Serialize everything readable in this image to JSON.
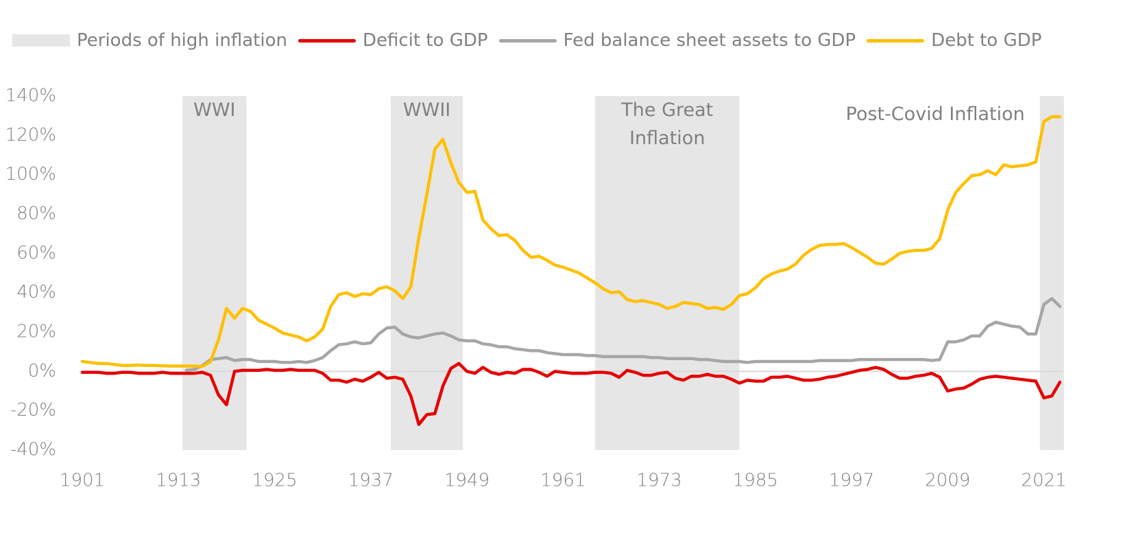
{
  "chart_data": {
    "type": "line",
    "x": [
      1901,
      1902,
      1903,
      1904,
      1905,
      1906,
      1907,
      1908,
      1909,
      1910,
      1911,
      1912,
      1913,
      1914,
      1915,
      1916,
      1917,
      1918,
      1919,
      1920,
      1921,
      1922,
      1923,
      1924,
      1925,
      1926,
      1927,
      1928,
      1929,
      1930,
      1931,
      1932,
      1933,
      1934,
      1935,
      1936,
      1937,
      1938,
      1939,
      1940,
      1941,
      1942,
      1943,
      1944,
      1945,
      1946,
      1947,
      1948,
      1949,
      1950,
      1951,
      1952,
      1953,
      1954,
      1955,
      1956,
      1957,
      1958,
      1959,
      1960,
      1961,
      1962,
      1963,
      1964,
      1965,
      1966,
      1967,
      1968,
      1969,
      1970,
      1971,
      1972,
      1973,
      1974,
      1975,
      1976,
      1977,
      1978,
      1979,
      1980,
      1981,
      1982,
      1983,
      1984,
      1985,
      1986,
      1987,
      1988,
      1989,
      1990,
      1991,
      1992,
      1993,
      1994,
      1995,
      1996,
      1997,
      1998,
      1999,
      2000,
      2001,
      2002,
      2003,
      2004,
      2005,
      2006,
      2007,
      2008,
      2009,
      2010,
      2011,
      2012,
      2013,
      2014,
      2015,
      2016,
      2017,
      2018,
      2019,
      2020,
      2021,
      2022,
      2023
    ],
    "series": [
      {
        "name": "Deficit to GDP",
        "color": "#e60000",
        "values": [
          -0.5,
          -0.5,
          -0.5,
          -1,
          -1,
          -0.5,
          -0.5,
          -1,
          -1,
          -1,
          -0.5,
          -1,
          -1,
          -1,
          -1,
          -0.5,
          -2,
          -12,
          -17,
          0,
          0.5,
          0.5,
          0.5,
          1,
          0.5,
          0.5,
          1,
          0.5,
          0.5,
          0.5,
          -1,
          -4.5,
          -4.5,
          -5.5,
          -4,
          -5,
          -3,
          -0.5,
          -3.5,
          -3,
          -4,
          -12.5,
          -27,
          -22,
          -21.5,
          -7.5,
          1.5,
          4,
          0,
          -1,
          2,
          -0.5,
          -1.5,
          -0.5,
          -1,
          1,
          1,
          -0.5,
          -2.5,
          0,
          -0.5,
          -1,
          -1,
          -1,
          -0.5,
          -0.5,
          -1,
          -3,
          0.5,
          -0.5,
          -2,
          -2,
          -1,
          -0.5,
          -3.5,
          -4.5,
          -2.5,
          -2.5,
          -1.5,
          -2.5,
          -2.5,
          -4,
          -6,
          -4.5,
          -5,
          -5,
          -3,
          -3,
          -2.5,
          -3.5,
          -4.5,
          -4.5,
          -4,
          -3,
          -2.5,
          -1.5,
          -0.5,
          0.5,
          1,
          2,
          1,
          -1.5,
          -3.5,
          -3.5,
          -2.5,
          -2,
          -1,
          -3,
          -10,
          -9,
          -8.5,
          -6.5,
          -4,
          -3,
          -2.5,
          -3,
          -3.5,
          -4,
          -4.5,
          -5,
          -13.5,
          -12.5,
          -5.5
        ]
      },
      {
        "name": "Fed balance sheet assets to GDP",
        "color": "#a6a6a6",
        "values": [
          null,
          null,
          null,
          null,
          null,
          null,
          null,
          null,
          null,
          null,
          null,
          null,
          null,
          0.5,
          1,
          3,
          6,
          6.5,
          7,
          5.5,
          6,
          6,
          5,
          5,
          5,
          4.5,
          4.5,
          5,
          4.5,
          5.5,
          7,
          10.5,
          13.5,
          14,
          15,
          14,
          14.5,
          19,
          22,
          22.5,
          19,
          17.5,
          17,
          18,
          19,
          19.5,
          18,
          16,
          15.5,
          15.5,
          14,
          13.5,
          12.5,
          12.5,
          11.5,
          11,
          10.5,
          10.5,
          9.5,
          9,
          8.5,
          8.5,
          8.5,
          8,
          8,
          7.5,
          7.5,
          7.5,
          7.5,
          7.5,
          7.5,
          7,
          7,
          6.5,
          6.5,
          6.5,
          6.5,
          6,
          6,
          5.5,
          5,
          5,
          5,
          4.5,
          5,
          5,
          5,
          5,
          5,
          5,
          5,
          5,
          5.5,
          5.5,
          5.5,
          5.5,
          5.5,
          6,
          6,
          6,
          6,
          6,
          6,
          6,
          6,
          6,
          5.5,
          6,
          15,
          15,
          16,
          18,
          18,
          23,
          25,
          24,
          23,
          22.5,
          19,
          19,
          34,
          37,
          33
        ]
      },
      {
        "name": "Debt to GDP",
        "color": "#ffc000",
        "values": [
          5,
          4.5,
          4,
          4,
          3.5,
          3,
          3,
          3.2,
          3,
          3,
          2.8,
          2.7,
          2.7,
          2.7,
          2.7,
          2.5,
          5,
          16,
          32,
          27,
          32,
          30.5,
          26,
          24,
          22,
          19.5,
          18.5,
          17.5,
          15.5,
          17.5,
          21.5,
          33,
          39,
          40,
          38,
          39.5,
          39,
          42,
          43,
          41,
          37,
          43,
          68,
          90,
          113,
          118,
          106,
          96,
          91,
          91.5,
          77,
          72.5,
          69,
          69.5,
          66.5,
          61.5,
          58,
          58.5,
          56.5,
          54,
          53,
          51.5,
          50,
          47.5,
          45,
          42,
          40,
          40.5,
          36.5,
          35.5,
          36,
          35,
          34,
          32,
          33,
          35,
          34.5,
          34,
          32,
          32.5,
          31.5,
          34,
          38.5,
          39.5,
          42.5,
          47,
          49.5,
          51,
          52,
          54.5,
          59,
          62,
          64,
          64.5,
          64.5,
          65,
          63,
          60.5,
          58,
          55,
          54.5,
          57,
          60,
          61,
          61.5,
          61.5,
          62.5,
          67.5,
          82,
          91,
          95.5,
          99.5,
          100,
          102,
          100,
          105,
          104,
          104.5,
          105,
          106.5,
          127,
          129.5,
          129.5
        ]
      }
    ],
    "periods_name": "Periods of high inflation",
    "periods_color": "#e7e6e6",
    "periods": [
      {
        "label": "WWI",
        "start": 1913.5,
        "end": 1921.5
      },
      {
        "label": "WWII",
        "start": 1939.5,
        "end": 1948.5
      },
      {
        "label": "The Great Inflation",
        "start": 1965,
        "end": 1983
      },
      {
        "label": "Post-Covid Inflation",
        "start": 2020.5,
        "end": 2023.5
      }
    ],
    "xlim": [
      1901,
      2023
    ],
    "xticks": [
      1901,
      1913,
      1925,
      1937,
      1949,
      1961,
      1973,
      1985,
      1997,
      2009,
      2021
    ],
    "ylim": [
      -40,
      140
    ],
    "yticks": [
      {
        "value": -40,
        "label": "-40%"
      },
      {
        "value": -20,
        "label": "-20%"
      },
      {
        "value": 0,
        "label": "0%"
      },
      {
        "value": 20,
        "label": "20%"
      },
      {
        "value": 40,
        "label": "40%"
      },
      {
        "value": 60,
        "label": "60%"
      },
      {
        "value": 80,
        "label": "80%"
      },
      {
        "value": 100,
        "label": "100%"
      },
      {
        "value": 120,
        "label": "120%"
      },
      {
        "value": 140,
        "label": "140%"
      }
    ],
    "grid": false,
    "zero_line": true,
    "legend": "top"
  }
}
